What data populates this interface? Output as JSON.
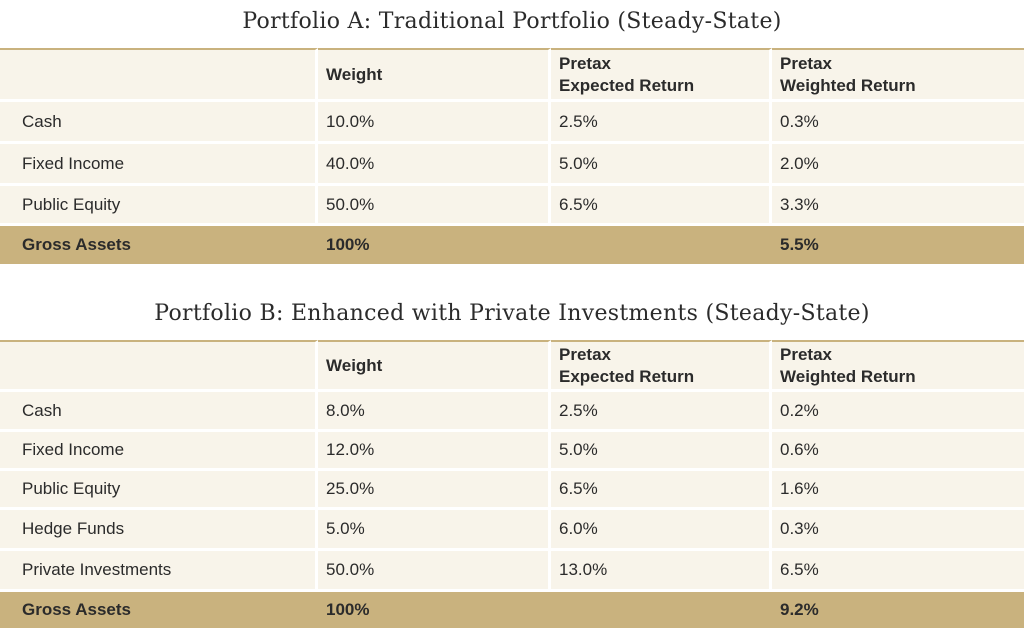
{
  "columns": {
    "weight": "Weight",
    "expected_line1": "Pretax",
    "expected_line2": "Expected Return",
    "weighted_line1": "Pretax",
    "weighted_line2": "Weighted Return"
  },
  "portfolio_a": {
    "title": "Portfolio A: Traditional Portfolio (Steady-State)",
    "rows": [
      {
        "asset": "Cash",
        "weight": "10.0%",
        "expected": "2.5%",
        "weighted": "0.3%"
      },
      {
        "asset": "Fixed Income",
        "weight": "40.0%",
        "expected": "5.0%",
        "weighted": "2.0%"
      },
      {
        "asset": "Public Equity",
        "weight": "50.0%",
        "expected": "6.5%",
        "weighted": "3.3%"
      }
    ],
    "total": {
      "asset": "Gross Assets",
      "weight": "100%",
      "expected": "",
      "weighted": "5.5%"
    }
  },
  "portfolio_b": {
    "title": "Portfolio B: Enhanced with Private Investments (Steady-State)",
    "rows": [
      {
        "asset": "Cash",
        "weight": "8.0%",
        "expected": "2.5%",
        "weighted": "0.2%"
      },
      {
        "asset": "Fixed Income",
        "weight": "12.0%",
        "expected": "5.0%",
        "weighted": "0.6%"
      },
      {
        "asset": "Public Equity",
        "weight": "25.0%",
        "expected": "6.5%",
        "weighted": "1.6%"
      },
      {
        "asset": "Hedge Funds",
        "weight": "5.0%",
        "expected": "6.0%",
        "weighted": "0.3%"
      },
      {
        "asset": "Private Investments",
        "weight": "50.0%",
        "expected": "13.0%",
        "weighted": "6.5%"
      }
    ],
    "total": {
      "asset": "Gross Assets",
      "weight": "100%",
      "expected": "",
      "weighted": "9.2%"
    }
  },
  "colors": {
    "cell_background": "#f8f4ea",
    "accent_gold": "#c9b27e",
    "text": "#2b2b2b"
  }
}
